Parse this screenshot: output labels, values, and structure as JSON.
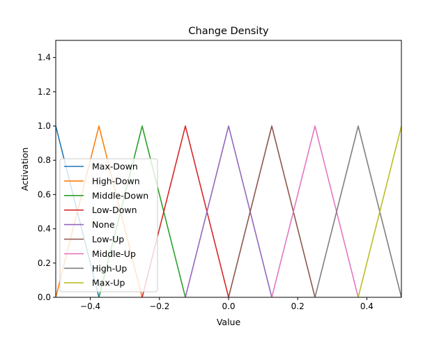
{
  "chart_data": {
    "type": "line",
    "title": "Change Density",
    "xlabel": "Value",
    "ylabel": "Activation",
    "xlim": [
      -0.5,
      0.5
    ],
    "ylim": [
      0,
      1.5
    ],
    "xticks": [
      -0.4,
      -0.2,
      0.0,
      0.2,
      0.4
    ],
    "xtick_labels": [
      "−0.4",
      "−0.2",
      "0.0",
      "0.2",
      "0.4"
    ],
    "yticks": [
      0.0,
      0.2,
      0.4,
      0.6,
      0.8,
      1.0,
      1.2,
      1.4
    ],
    "ytick_labels": [
      "0.0",
      "0.2",
      "0.4",
      "0.6",
      "0.8",
      "1.0",
      "1.2",
      "1.4"
    ],
    "grid": false,
    "legend_position": "lower-left",
    "series": [
      {
        "name": "Max-Down",
        "color": "#1f77b4",
        "x": [
          -0.5,
          -0.375
        ],
        "y": [
          1.0,
          0.0
        ]
      },
      {
        "name": "High-Down",
        "color": "#ff7f0e",
        "x": [
          -0.5,
          -0.375,
          -0.25
        ],
        "y": [
          0.0,
          1.0,
          0.0
        ]
      },
      {
        "name": "Middle-Down",
        "color": "#2ca02c",
        "x": [
          -0.375,
          -0.25,
          -0.125
        ],
        "y": [
          0.0,
          1.0,
          0.0
        ]
      },
      {
        "name": "Low-Down",
        "color": "#d62728",
        "x": [
          -0.25,
          -0.125,
          0.0
        ],
        "y": [
          0.0,
          1.0,
          0.0
        ]
      },
      {
        "name": "None",
        "color": "#9467bd",
        "x": [
          -0.125,
          0.0,
          0.125
        ],
        "y": [
          0.0,
          1.0,
          0.0
        ]
      },
      {
        "name": "Low-Up",
        "color": "#8c564b",
        "x": [
          0.0,
          0.125,
          0.25
        ],
        "y": [
          0.0,
          1.0,
          0.0
        ]
      },
      {
        "name": "Middle-Up",
        "color": "#e377c2",
        "x": [
          0.125,
          0.25,
          0.375
        ],
        "y": [
          0.0,
          1.0,
          0.0
        ]
      },
      {
        "name": "High-Up",
        "color": "#7f7f7f",
        "x": [
          0.25,
          0.375,
          0.5
        ],
        "y": [
          0.0,
          1.0,
          0.0
        ]
      },
      {
        "name": "Max-Up",
        "color": "#bcbd22",
        "x": [
          0.375,
          0.5
        ],
        "y": [
          0.0,
          1.0
        ]
      }
    ]
  }
}
